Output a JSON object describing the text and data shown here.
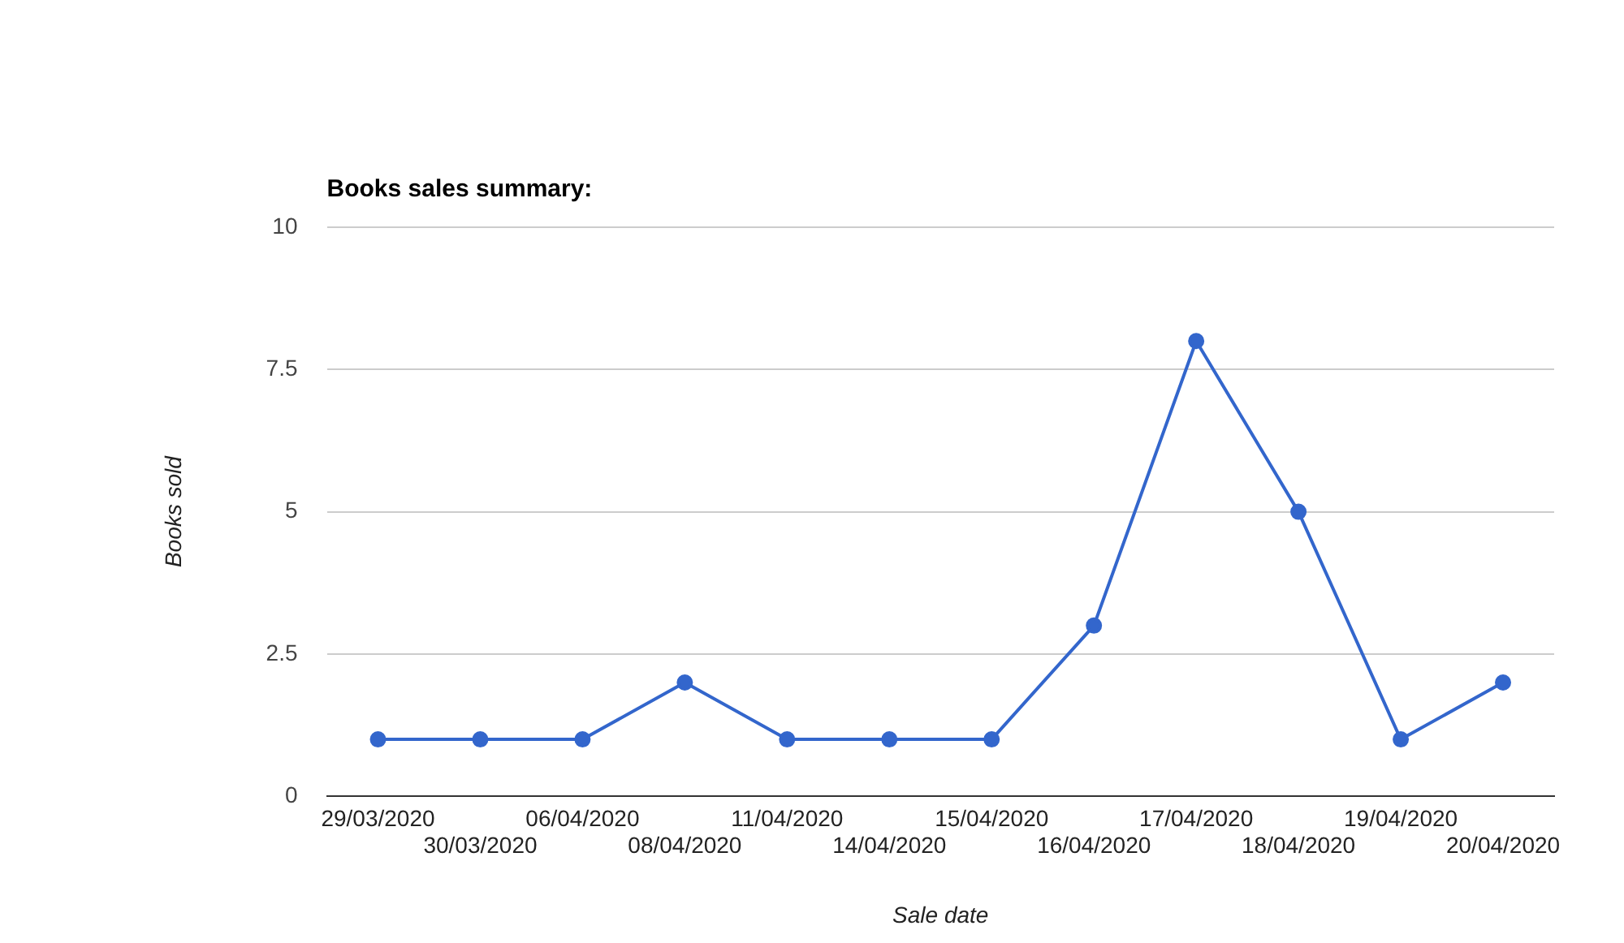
{
  "chart_data": {
    "type": "line",
    "title": "Books sales summary:",
    "xlabel": "Sale date",
    "ylabel": "Books sold",
    "categories": [
      "29/03/2020",
      "30/03/2020",
      "06/04/2020",
      "08/04/2020",
      "11/04/2020",
      "14/04/2020",
      "15/04/2020",
      "16/04/2020",
      "17/04/2020",
      "18/04/2020",
      "19/04/2020",
      "20/04/2020"
    ],
    "series": [
      {
        "color": "#3366cc",
        "values": [
          1,
          1,
          1,
          2,
          1,
          1,
          1,
          3,
          8,
          5,
          1,
          2
        ]
      }
    ],
    "ylim": [
      0,
      10
    ],
    "yticks": [
      0,
      2.5,
      5,
      7.5,
      10
    ],
    "grid": "y",
    "legend": false,
    "marker": "circle",
    "line_style": "solid"
  }
}
